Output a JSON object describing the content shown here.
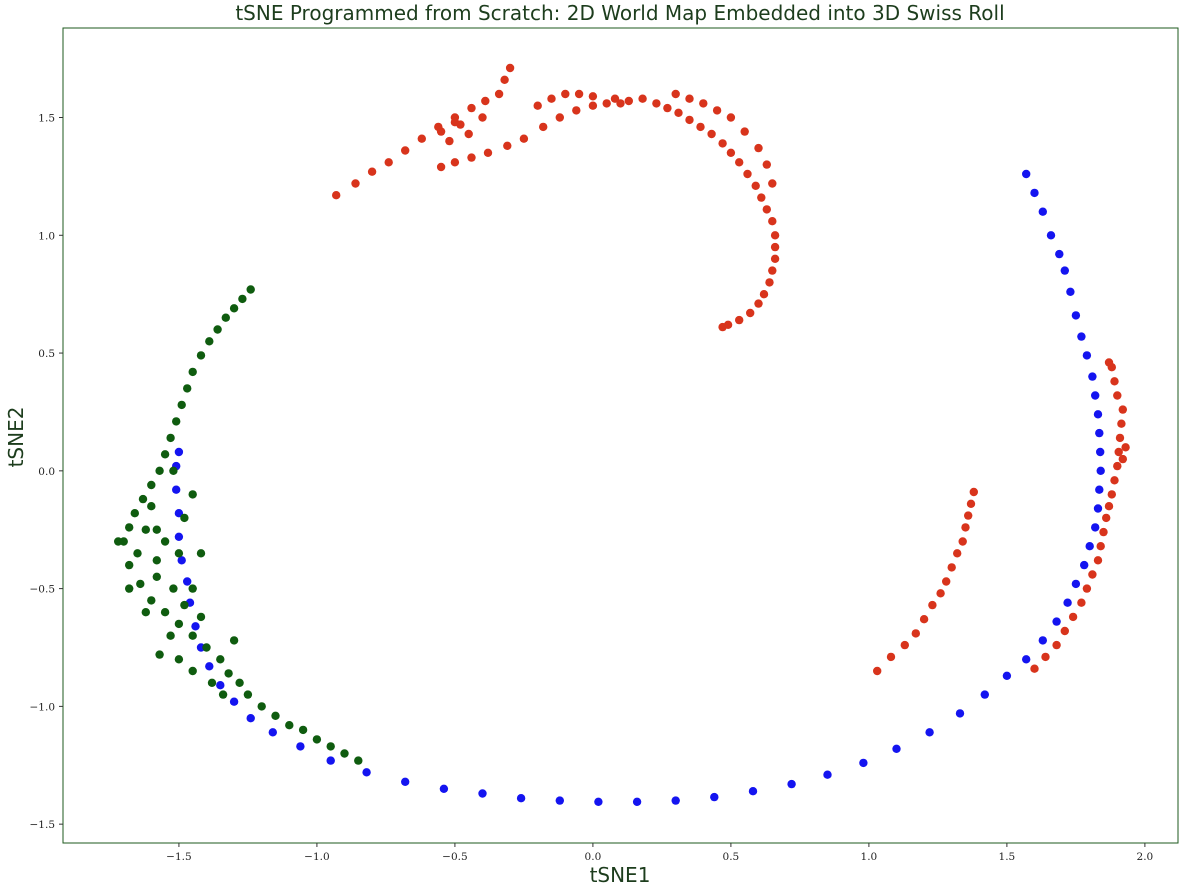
{
  "chart_data": {
    "type": "scatter",
    "title": "tSNE Programmed from Scratch: 2D World Map Embedded into 3D Swiss Roll",
    "xlabel": "tSNE1",
    "ylabel": "tSNE2",
    "xlim": [
      -1.92,
      2.12
    ],
    "ylim": [
      -1.58,
      1.88
    ],
    "xticks": [
      {
        "value": -1.5,
        "label": "−1.5"
      },
      {
        "value": -1.0,
        "label": "−1.0"
      },
      {
        "value": -0.5,
        "label": "−0.5"
      },
      {
        "value": 0.0,
        "label": "0.0"
      },
      {
        "value": 0.5,
        "label": "0.5"
      },
      {
        "value": 1.0,
        "label": "1.0"
      },
      {
        "value": 1.5,
        "label": "1.5"
      },
      {
        "value": 2.0,
        "label": "2.0"
      }
    ],
    "yticks": [
      {
        "value": -1.5,
        "label": "−1.5"
      },
      {
        "value": -1.0,
        "label": "−1.0"
      },
      {
        "value": -0.5,
        "label": "−0.5"
      },
      {
        "value": 0.0,
        "label": "0.0"
      },
      {
        "value": 0.5,
        "label": "0.5"
      },
      {
        "value": 1.0,
        "label": "1.0"
      },
      {
        "value": 1.5,
        "label": "1.5"
      }
    ],
    "grid": false,
    "legend": "none",
    "series": [
      {
        "color": "#1414f0",
        "points": [
          [
            1.57,
            1.26
          ],
          [
            1.6,
            1.18
          ],
          [
            1.63,
            1.1
          ],
          [
            1.66,
            1.0
          ],
          [
            1.69,
            0.92
          ],
          [
            1.71,
            0.85
          ],
          [
            1.73,
            0.76
          ],
          [
            1.75,
            0.66
          ],
          [
            1.77,
            0.57
          ],
          [
            1.79,
            0.49
          ],
          [
            1.81,
            0.4
          ],
          [
            1.82,
            0.32
          ],
          [
            1.83,
            0.24
          ],
          [
            1.835,
            0.16
          ],
          [
            1.838,
            0.08
          ],
          [
            1.84,
            0.0
          ],
          [
            1.835,
            -0.08
          ],
          [
            1.83,
            -0.16
          ],
          [
            1.82,
            -0.24
          ],
          [
            1.8,
            -0.32
          ],
          [
            1.78,
            -0.4
          ],
          [
            1.75,
            -0.48
          ],
          [
            1.72,
            -0.56
          ],
          [
            1.68,
            -0.64
          ],
          [
            1.63,
            -0.72
          ],
          [
            1.57,
            -0.8
          ],
          [
            1.5,
            -0.87
          ],
          [
            1.42,
            -0.95
          ],
          [
            1.33,
            -1.03
          ],
          [
            1.22,
            -1.11
          ],
          [
            1.1,
            -1.18
          ],
          [
            0.98,
            -1.24
          ],
          [
            0.85,
            -1.29
          ],
          [
            0.72,
            -1.33
          ],
          [
            0.58,
            -1.36
          ],
          [
            0.44,
            -1.385
          ],
          [
            0.3,
            -1.4
          ],
          [
            0.16,
            -1.405
          ],
          [
            0.02,
            -1.405
          ],
          [
            -0.12,
            -1.4
          ],
          [
            -0.26,
            -1.39
          ],
          [
            -0.4,
            -1.37
          ],
          [
            -0.54,
            -1.35
          ],
          [
            -0.68,
            -1.32
          ],
          [
            -0.82,
            -1.28
          ],
          [
            -0.95,
            -1.23
          ],
          [
            -1.06,
            -1.17
          ],
          [
            -1.16,
            -1.11
          ],
          [
            -1.24,
            -1.05
          ],
          [
            -1.3,
            -0.98
          ],
          [
            -1.35,
            -0.91
          ],
          [
            -1.39,
            -0.83
          ],
          [
            -1.42,
            -0.75
          ],
          [
            -1.44,
            -0.66
          ],
          [
            -1.46,
            -0.56
          ],
          [
            -1.47,
            -0.47
          ],
          [
            -1.49,
            -0.38
          ],
          [
            -1.5,
            -0.28
          ],
          [
            -1.5,
            -0.18
          ],
          [
            -1.51,
            -0.08
          ],
          [
            -1.51,
            0.02
          ],
          [
            -1.5,
            0.08
          ]
        ]
      },
      {
        "color": "#d8341c",
        "points": [
          [
            -0.93,
            1.17
          ],
          [
            -0.86,
            1.22
          ],
          [
            -0.8,
            1.27
          ],
          [
            -0.74,
            1.31
          ],
          [
            -0.68,
            1.36
          ],
          [
            -0.62,
            1.41
          ],
          [
            -0.56,
            1.46
          ],
          [
            -0.5,
            1.5
          ],
          [
            -0.44,
            1.54
          ],
          [
            -0.39,
            1.57
          ],
          [
            -0.34,
            1.6
          ],
          [
            -0.32,
            1.66
          ],
          [
            -0.3,
            1.71
          ],
          [
            -0.55,
            1.44
          ],
          [
            -0.5,
            1.48
          ],
          [
            -0.45,
            1.43
          ],
          [
            -0.4,
            1.5
          ],
          [
            -0.52,
            1.4
          ],
          [
            -0.48,
            1.47
          ],
          [
            -0.55,
            1.29
          ],
          [
            -0.5,
            1.31
          ],
          [
            -0.44,
            1.33
          ],
          [
            -0.38,
            1.35
          ],
          [
            -0.31,
            1.38
          ],
          [
            -0.25,
            1.41
          ],
          [
            -0.18,
            1.46
          ],
          [
            -0.12,
            1.5
          ],
          [
            -0.06,
            1.53
          ],
          [
            0.0,
            1.55
          ],
          [
            0.05,
            1.56
          ],
          [
            0.1,
            1.56
          ],
          [
            -0.2,
            1.55
          ],
          [
            -0.15,
            1.58
          ],
          [
            -0.1,
            1.6
          ],
          [
            -0.05,
            1.6
          ],
          [
            0.0,
            1.59
          ],
          [
            0.08,
            1.58
          ],
          [
            0.13,
            1.57
          ],
          [
            0.18,
            1.58
          ],
          [
            0.23,
            1.56
          ],
          [
            0.27,
            1.54
          ],
          [
            0.31,
            1.52
          ],
          [
            0.35,
            1.49
          ],
          [
            0.39,
            1.46
          ],
          [
            0.43,
            1.43
          ],
          [
            0.47,
            1.39
          ],
          [
            0.5,
            1.35
          ],
          [
            0.53,
            1.31
          ],
          [
            0.56,
            1.26
          ],
          [
            0.59,
            1.21
          ],
          [
            0.61,
            1.16
          ],
          [
            0.63,
            1.11
          ],
          [
            0.65,
            1.06
          ],
          [
            0.66,
            1.0
          ],
          [
            0.66,
            0.95
          ],
          [
            0.66,
            0.9
          ],
          [
            0.65,
            0.85
          ],
          [
            0.64,
            0.8
          ],
          [
            0.62,
            0.75
          ],
          [
            0.6,
            0.71
          ],
          [
            0.57,
            0.67
          ],
          [
            0.53,
            0.64
          ],
          [
            0.49,
            0.62
          ],
          [
            0.47,
            0.61
          ],
          [
            0.3,
            1.6
          ],
          [
            0.35,
            1.58
          ],
          [
            0.4,
            1.56
          ],
          [
            0.45,
            1.53
          ],
          [
            0.5,
            1.5
          ],
          [
            0.55,
            1.44
          ],
          [
            0.6,
            1.37
          ],
          [
            0.63,
            1.3
          ],
          [
            0.65,
            1.22
          ],
          [
            1.03,
            -0.85
          ],
          [
            1.08,
            -0.79
          ],
          [
            1.13,
            -0.74
          ],
          [
            1.17,
            -0.69
          ],
          [
            1.2,
            -0.63
          ],
          [
            1.23,
            -0.57
          ],
          [
            1.26,
            -0.52
          ],
          [
            1.28,
            -0.47
          ],
          [
            1.3,
            -0.41
          ],
          [
            1.32,
            -0.35
          ],
          [
            1.34,
            -0.3
          ],
          [
            1.35,
            -0.24
          ],
          [
            1.36,
            -0.19
          ],
          [
            1.37,
            -0.14
          ],
          [
            1.38,
            -0.09
          ],
          [
            1.89,
            -0.04
          ],
          [
            1.9,
            0.02
          ],
          [
            1.905,
            0.08
          ],
          [
            1.91,
            0.14
          ],
          [
            1.915,
            0.2
          ],
          [
            1.92,
            0.26
          ],
          [
            1.9,
            0.32
          ],
          [
            1.89,
            0.38
          ],
          [
            1.88,
            0.44
          ],
          [
            1.87,
            0.46
          ],
          [
            1.92,
            0.05
          ],
          [
            1.93,
            0.1
          ],
          [
            1.88,
            -0.1
          ],
          [
            1.87,
            -0.15
          ],
          [
            1.86,
            -0.2
          ],
          [
            1.85,
            -0.26
          ],
          [
            1.84,
            -0.32
          ],
          [
            1.83,
            -0.38
          ],
          [
            1.81,
            -0.44
          ],
          [
            1.79,
            -0.5
          ],
          [
            1.77,
            -0.56
          ],
          [
            1.74,
            -0.62
          ],
          [
            1.71,
            -0.68
          ],
          [
            1.68,
            -0.74
          ],
          [
            1.64,
            -0.79
          ],
          [
            1.6,
            -0.84
          ]
        ]
      },
      {
        "color": "#0f5c0f",
        "points": [
          [
            -1.24,
            0.77
          ],
          [
            -1.27,
            0.73
          ],
          [
            -1.3,
            0.69
          ],
          [
            -1.33,
            0.65
          ],
          [
            -1.36,
            0.6
          ],
          [
            -1.39,
            0.55
          ],
          [
            -1.42,
            0.49
          ],
          [
            -1.45,
            0.42
          ],
          [
            -1.47,
            0.35
          ],
          [
            -1.49,
            0.28
          ],
          [
            -1.51,
            0.21
          ],
          [
            -1.53,
            0.14
          ],
          [
            -1.55,
            0.07
          ],
          [
            -1.57,
            0.0
          ],
          [
            -1.6,
            -0.06
          ],
          [
            -1.63,
            -0.12
          ],
          [
            -1.66,
            -0.18
          ],
          [
            -1.68,
            -0.24
          ],
          [
            -1.7,
            -0.3
          ],
          [
            -1.72,
            -0.3
          ],
          [
            -1.65,
            -0.35
          ],
          [
            -1.58,
            -0.38
          ],
          [
            -1.55,
            -0.3
          ],
          [
            -1.62,
            -0.25
          ],
          [
            -1.68,
            -0.4
          ],
          [
            -1.64,
            -0.48
          ],
          [
            -1.58,
            -0.45
          ],
          [
            -1.52,
            -0.5
          ],
          [
            -1.6,
            -0.55
          ],
          [
            -1.55,
            -0.6
          ],
          [
            -1.5,
            -0.65
          ],
          [
            -1.48,
            -0.57
          ],
          [
            -1.45,
            -0.7
          ],
          [
            -1.4,
            -0.75
          ],
          [
            -1.35,
            -0.8
          ],
          [
            -1.32,
            -0.86
          ],
          [
            -1.28,
            -0.9
          ],
          [
            -1.25,
            -0.95
          ],
          [
            -1.2,
            -1.0
          ],
          [
            -1.15,
            -1.04
          ],
          [
            -1.1,
            -1.08
          ],
          [
            -1.05,
            -1.1
          ],
          [
            -1.0,
            -1.14
          ],
          [
            -0.95,
            -1.17
          ],
          [
            -0.9,
            -1.2
          ],
          [
            -0.85,
            -1.23
          ],
          [
            -1.45,
            -0.1
          ],
          [
            -1.48,
            -0.2
          ],
          [
            -1.42,
            -0.35
          ],
          [
            -1.45,
            -0.5
          ],
          [
            -1.42,
            -0.62
          ],
          [
            -1.38,
            -0.9
          ],
          [
            -1.34,
            -0.95
          ],
          [
            -1.53,
            -0.7
          ],
          [
            -1.5,
            -0.8
          ],
          [
            -1.58,
            -0.25
          ],
          [
            -1.52,
            0.0
          ],
          [
            -1.62,
            -0.6
          ],
          [
            -1.45,
            -0.85
          ],
          [
            -1.3,
            -0.72
          ],
          [
            -1.57,
            -0.78
          ],
          [
            -1.68,
            -0.5
          ],
          [
            -1.6,
            -0.15
          ],
          [
            -1.5,
            -0.35
          ]
        ]
      }
    ]
  }
}
